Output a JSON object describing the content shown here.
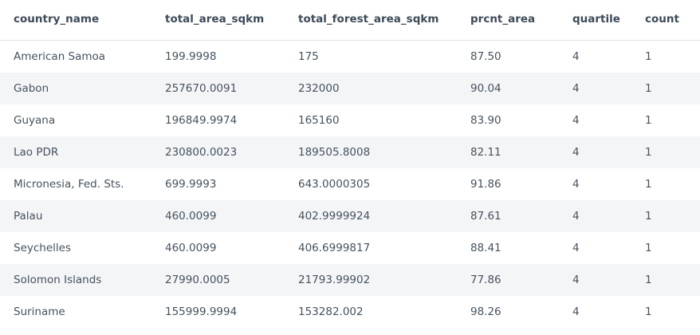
{
  "table": {
    "columns": [
      "country_name",
      "total_area_sqkm",
      "total_forest_area_sqkm",
      "prcnt_area",
      "quartile",
      "count"
    ],
    "rows": [
      [
        "American Samoa",
        "199.9998",
        "175",
        "87.50",
        "4",
        "1"
      ],
      [
        "Gabon",
        "257670.0091",
        "232000",
        "90.04",
        "4",
        "1"
      ],
      [
        "Guyana",
        "196849.9974",
        "165160",
        "83.90",
        "4",
        "1"
      ],
      [
        "Lao PDR",
        "230800.0023",
        "189505.8008",
        "82.11",
        "4",
        "1"
      ],
      [
        "Micronesia, Fed. Sts.",
        "699.9993",
        "643.0000305",
        "91.86",
        "4",
        "1"
      ],
      [
        "Palau",
        "460.0099",
        "402.9999924",
        "87.61",
        "4",
        "1"
      ],
      [
        "Seychelles",
        "460.0099",
        "406.6999817",
        "88.41",
        "4",
        "1"
      ],
      [
        "Solomon Islands",
        "27990.0005",
        "21793.99902",
        "77.86",
        "4",
        "1"
      ],
      [
        "Suriname",
        "155999.9994",
        "153282.002",
        "98.26",
        "4",
        "1"
      ]
    ]
  }
}
